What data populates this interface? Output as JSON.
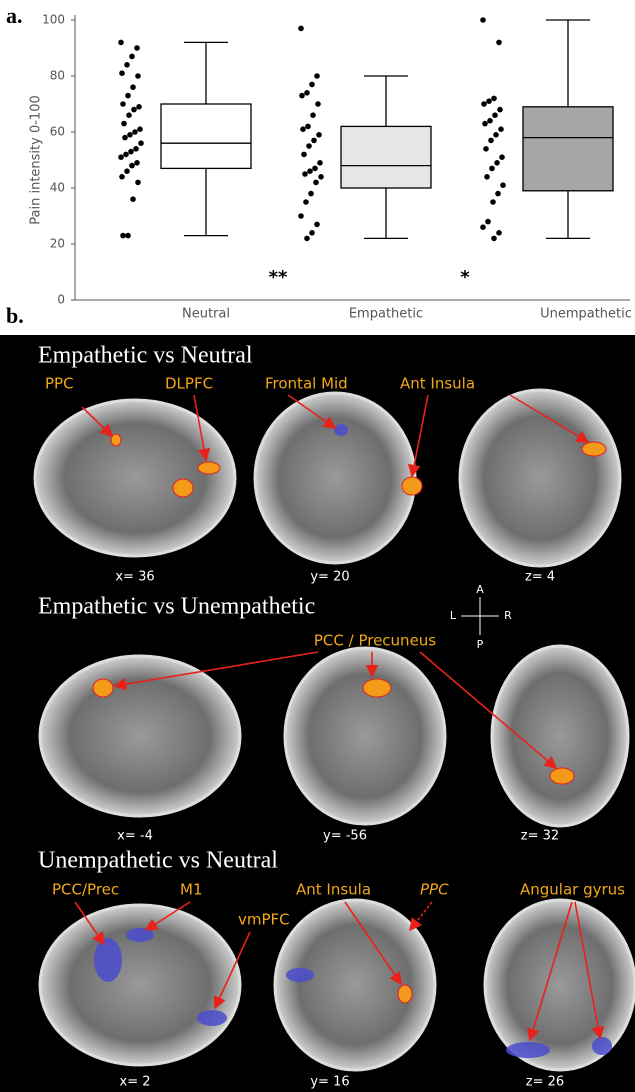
{
  "panel_labels": [
    "a.",
    "b."
  ],
  "chart_data": {
    "type": "box",
    "ylabel": "Pain intensity 0-100",
    "categories": [
      "Neutral",
      "Empathetic",
      "Unempathetic"
    ],
    "ylim": [
      0,
      100
    ],
    "yticks": [
      0,
      20,
      40,
      60,
      80,
      100
    ],
    "colors": [
      "#ffffff",
      "#e6e6e6",
      "#a6a6a6"
    ],
    "boxes": [
      {
        "min": 23,
        "q1": 47,
        "median": 56,
        "q3": 70,
        "max": 92
      },
      {
        "min": 22,
        "q1": 40,
        "median": 48,
        "q3": 62,
        "max": 80
      },
      {
        "min": 22,
        "q1": 39,
        "median": 58,
        "q3": 69,
        "max": 100
      }
    ],
    "points": [
      [
        92,
        90,
        87,
        84,
        81,
        80,
        76,
        73,
        70,
        69,
        68,
        66,
        63,
        61,
        60,
        59,
        58,
        56,
        54,
        53,
        52,
        51,
        49,
        48,
        46,
        44,
        42,
        36,
        23,
        23
      ],
      [
        97,
        80,
        77,
        74,
        73,
        70,
        66,
        62,
        61,
        59,
        57,
        55,
        52,
        49,
        47,
        46,
        45,
        44,
        42,
        38,
        35,
        30,
        27,
        24,
        22
      ],
      [
        100,
        92,
        72,
        71,
        70,
        68,
        66,
        64,
        63,
        61,
        59,
        57,
        54,
        51,
        49,
        47,
        44,
        41,
        38,
        35,
        28,
        26,
        24,
        22
      ]
    ],
    "annotations": [
      "**",
      "*"
    ]
  },
  "brain_panel": {
    "compass": [
      "A",
      "L",
      "R",
      "P"
    ],
    "rows": [
      {
        "title": "Empathetic vs Neutral",
        "regions": [
          "PPC",
          "DLPFC",
          "Frontal Mid",
          "Ant Insula"
        ],
        "coords": [
          "x= 36",
          "y= 20",
          "z= 4"
        ]
      },
      {
        "title": "Empathetic vs Unempathetic",
        "regions": [
          "PCC / Precuneus"
        ],
        "coords": [
          "x= -4",
          "y= -56",
          "z= 32"
        ]
      },
      {
        "title": "Unempathetic vs Neutral",
        "regions": [
          "PCC/Prec",
          "M1",
          "vmPFC",
          "Ant Insula",
          "PPC",
          "Angular gyrus"
        ],
        "coords": [
          "x= 2",
          "y= 16",
          "z= 26"
        ]
      }
    ]
  }
}
